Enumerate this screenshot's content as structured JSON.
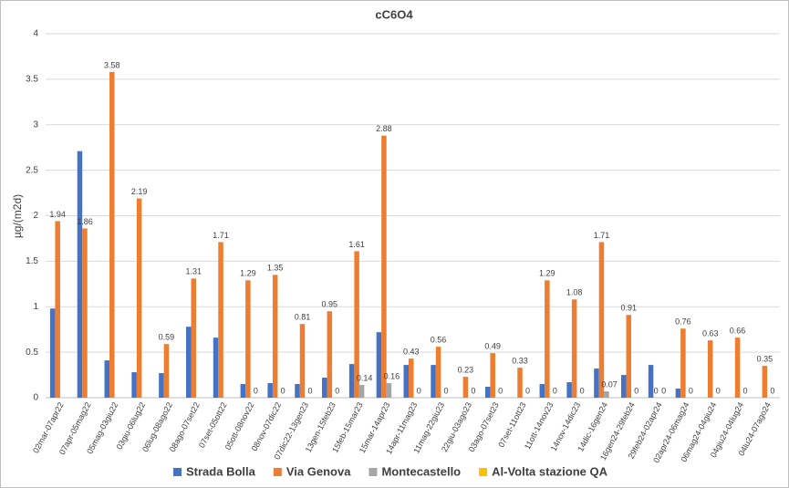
{
  "chart_data": {
    "type": "bar",
    "title": "cC6O4",
    "y_label": "µg/(m2d)",
    "categories": [
      "02mar-07apr22",
      "07apr-05mag22",
      "05mag-03giu22",
      "03giu-06lug22",
      "06lug-08ago22",
      "08ago-07set22",
      "07set-05ott22",
      "05ott-08nov22",
      "08nov-07dic22",
      "07dic22-13gen23",
      "13gen-15feb23",
      "15feb-15mar23",
      "15mar-14apr23",
      "14apr-11mag23",
      "11mag-22giu23",
      "22giu-03ago23",
      "03ago-07set23",
      "07set-11ott23",
      "11ott-14nov23",
      "14nov-14dic23",
      "14dic-16gen24",
      "16gen24-29feb24",
      "29feb24-02apr24",
      "02apr24-06mag24",
      "06mag24-04giu24",
      "04giu24-04lug24",
      "04lu24-07ago24"
    ],
    "series": [
      {
        "name": "Strada Bolla",
        "color": "#4472c4",
        "values": [
          0.98,
          2.71,
          0.41,
          0.28,
          0.27,
          0.78,
          0.66,
          0.15,
          0.16,
          0.15,
          0.22,
          0.37,
          0.72,
          0.36,
          0.36,
          null,
          0.12,
          null,
          0.15,
          0.17,
          0.32,
          0.25,
          0.36,
          0.1,
          null,
          null,
          null
        ],
        "labels": false
      },
      {
        "name": "Via Genova",
        "color": "#ed7d31",
        "values": [
          1.94,
          1.86,
          3.58,
          2.19,
          0.59,
          1.31,
          1.71,
          1.29,
          1.35,
          0.81,
          0.95,
          1.61,
          2.88,
          0.43,
          0.56,
          0.23,
          0.49,
          0.33,
          1.29,
          1.08,
          1.71,
          0.91,
          0,
          0.76,
          0.63,
          0.66,
          0.35
        ],
        "labels": true
      },
      {
        "name": "Montecastello",
        "color": "#a5a5a5",
        "values": [
          null,
          null,
          null,
          null,
          null,
          null,
          null,
          0,
          0,
          0,
          0,
          0.14,
          0.16,
          0,
          0,
          0,
          0,
          0,
          0,
          0,
          0.07,
          0,
          0,
          0,
          0,
          0,
          0
        ],
        "labels": true
      },
      {
        "name": "Al-Volta stazione QA",
        "color": "#ffc000",
        "values": [
          null,
          null,
          null,
          null,
          null,
          null,
          null,
          null,
          null,
          null,
          null,
          null,
          null,
          null,
          null,
          null,
          null,
          null,
          null,
          null,
          null,
          null,
          null,
          null,
          null,
          null,
          null
        ],
        "labels": false
      }
    ],
    "ylim": [
      0,
      4
    ],
    "yticks": [
      0,
      0.5,
      1,
      1.5,
      2,
      2.5,
      3,
      3.5,
      4
    ],
    "grid": true
  }
}
